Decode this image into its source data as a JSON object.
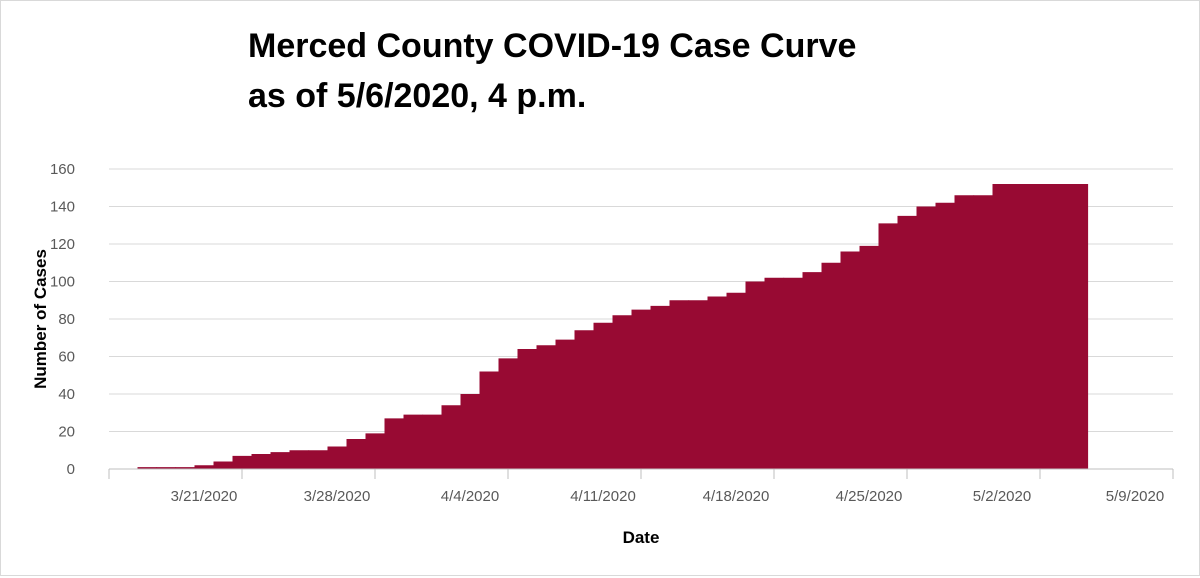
{
  "chart_data": {
    "type": "area",
    "title": [
      "Merced County COVID-19 Case Curve",
      "as of 5/6/2020, 4 p.m."
    ],
    "xlabel": "Date",
    "ylabel": "Number of Cases",
    "ylim": [
      0,
      160
    ],
    "yticks": [
      0,
      20,
      40,
      60,
      80,
      100,
      120,
      140,
      160
    ],
    "xlim": [
      "2020-03-16",
      "2020-05-11"
    ],
    "xticks": [
      {
        "date": "2020-03-21",
        "label": "3/21/2020"
      },
      {
        "date": "2020-03-28",
        "label": "3/28/2020"
      },
      {
        "date": "2020-04-04",
        "label": "4/4/2020"
      },
      {
        "date": "2020-04-11",
        "label": "4/11/2020"
      },
      {
        "date": "2020-04-18",
        "label": "4/18/2020"
      },
      {
        "date": "2020-04-25",
        "label": "4/25/2020"
      },
      {
        "date": "2020-05-02",
        "label": "5/2/2020"
      },
      {
        "date": "2020-05-09",
        "label": "5/9/2020"
      }
    ],
    "grid": true,
    "step": true,
    "color": "#980a33",
    "series": [
      {
        "x": [
          "2020-03-18",
          "2020-03-19",
          "2020-03-20",
          "2020-03-21",
          "2020-03-22",
          "2020-03-23",
          "2020-03-24",
          "2020-03-25",
          "2020-03-26",
          "2020-03-27",
          "2020-03-28",
          "2020-03-29",
          "2020-03-30",
          "2020-03-31",
          "2020-04-01",
          "2020-04-02",
          "2020-04-03",
          "2020-04-04",
          "2020-04-05",
          "2020-04-06",
          "2020-04-07",
          "2020-04-08",
          "2020-04-09",
          "2020-04-10",
          "2020-04-11",
          "2020-04-12",
          "2020-04-13",
          "2020-04-14",
          "2020-04-15",
          "2020-04-16",
          "2020-04-17",
          "2020-04-18",
          "2020-04-19",
          "2020-04-20",
          "2020-04-21",
          "2020-04-22",
          "2020-04-23",
          "2020-04-24",
          "2020-04-25",
          "2020-04-26",
          "2020-04-27",
          "2020-04-28",
          "2020-04-29",
          "2020-04-30",
          "2020-05-01",
          "2020-05-02",
          "2020-05-03",
          "2020-05-04",
          "2020-05-05",
          "2020-05-06"
        ],
        "values": [
          1,
          1,
          1,
          2,
          4,
          7,
          8,
          9,
          10,
          10,
          12,
          16,
          19,
          27,
          29,
          29,
          34,
          40,
          52,
          59,
          64,
          66,
          69,
          74,
          78,
          82,
          85,
          87,
          90,
          90,
          92,
          94,
          100,
          102,
          102,
          105,
          110,
          116,
          119,
          131,
          135,
          140,
          142,
          146,
          146,
          152,
          152,
          152,
          152,
          152
        ]
      }
    ]
  }
}
